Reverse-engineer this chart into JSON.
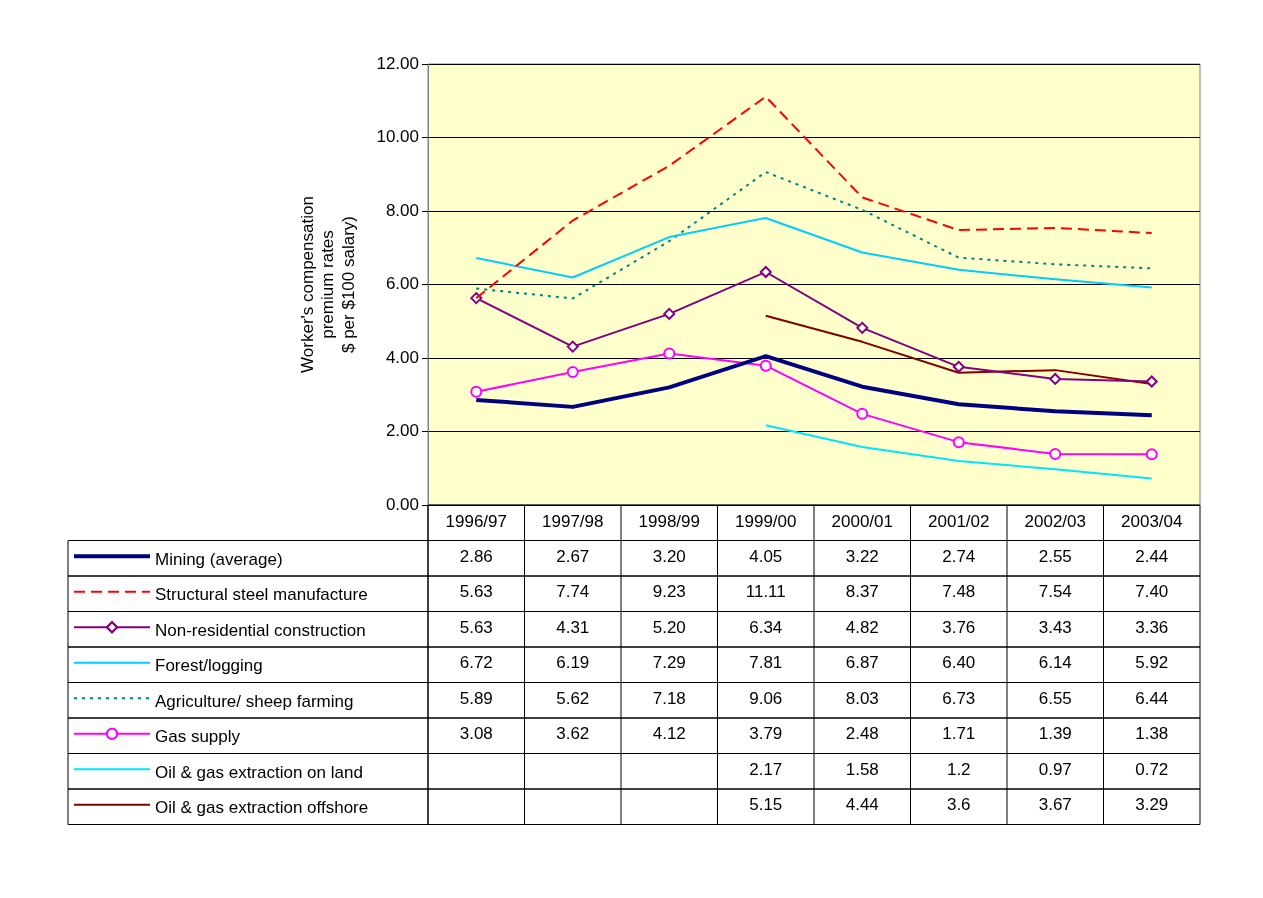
{
  "chart_data": {
    "type": "line",
    "ylabel": "Worker's compensation\npremium rates\n$ per $100 salary)",
    "categories": [
      "1996/97",
      "1997/98",
      "1998/99",
      "1999/00",
      "2000/01",
      "2001/02",
      "2002/03",
      "2003/04"
    ],
    "ylim": [
      0,
      12
    ],
    "yticks": [
      {
        "value": 0,
        "label": "0.00"
      },
      {
        "value": 2,
        "label": "2.00"
      },
      {
        "value": 4,
        "label": "4.00"
      },
      {
        "value": 6,
        "label": "6.00"
      },
      {
        "value": 8,
        "label": "8.00"
      },
      {
        "value": 10,
        "label": "10.00"
      },
      {
        "value": 12,
        "label": "12.00"
      }
    ],
    "grid": "y",
    "legend": "bottom",
    "series": [
      {
        "name": "Mining (average)",
        "color": "#000080",
        "line_style": "solid",
        "marker": "none",
        "values": [
          2.86,
          2.67,
          3.2,
          4.05,
          3.22,
          2.74,
          2.55,
          2.44
        ],
        "value_labels": [
          "2.86",
          "2.67",
          "3.20",
          "4.05",
          "3.22",
          "2.74",
          "2.55",
          "2.44"
        ]
      },
      {
        "name": "Structural steel manufacture",
        "color": "#ff0000",
        "line_style": "dashed",
        "marker": "none",
        "values": [
          5.63,
          7.74,
          9.23,
          11.11,
          8.37,
          7.48,
          7.54,
          7.4
        ],
        "value_labels": [
          "5.63",
          "7.74",
          "9.23",
          "11.11",
          "8.37",
          "7.48",
          "7.54",
          "7.40"
        ]
      },
      {
        "name": "Non-residential construction",
        "color": "#800080",
        "line_style": "solid",
        "marker": "diamond",
        "values": [
          5.63,
          4.31,
          5.2,
          6.34,
          4.82,
          3.76,
          3.43,
          3.36
        ],
        "value_labels": [
          "5.63",
          "4.31",
          "5.20",
          "6.34",
          "4.82",
          "3.76",
          "3.43",
          "3.36"
        ]
      },
      {
        "name": "Forest/logging",
        "color": "#00ccff",
        "line_style": "solid",
        "marker": "none",
        "values": [
          6.72,
          6.19,
          7.29,
          7.81,
          6.87,
          6.4,
          6.14,
          5.92
        ],
        "value_labels": [
          "6.72",
          "6.19",
          "7.29",
          "7.81",
          "6.87",
          "6.40",
          "6.14",
          "5.92"
        ]
      },
      {
        "name": "Agriculture/ sheep farming",
        "color": "#008080",
        "line_style": "dotted",
        "marker": "none",
        "values": [
          5.89,
          5.62,
          7.18,
          9.06,
          8.03,
          6.73,
          6.55,
          6.44
        ],
        "value_labels": [
          "5.89",
          "5.62",
          "7.18",
          "9.06",
          "8.03",
          "6.73",
          "6.55",
          "6.44"
        ]
      },
      {
        "name": "Gas supply",
        "color": "#ff00ff",
        "line_style": "solid",
        "marker": "circle",
        "values": [
          3.08,
          3.62,
          4.12,
          3.79,
          2.48,
          1.71,
          1.39,
          1.38
        ],
        "value_labels": [
          "3.08",
          "3.62",
          "4.12",
          "3.79",
          "2.48",
          "1.71",
          "1.39",
          "1.38"
        ]
      },
      {
        "name": "Oil & gas extraction on land",
        "color": "#00e5ff",
        "line_style": "solid",
        "marker": "none",
        "values": [
          null,
          null,
          null,
          2.17,
          1.58,
          1.2,
          0.97,
          0.72
        ],
        "value_labels": [
          null,
          null,
          null,
          "2.17",
          "1.58",
          "1.2",
          "0.97",
          "0.72"
        ]
      },
      {
        "name": "Oil & gas extraction offshore",
        "color": "#800000",
        "line_style": "solid",
        "marker": "none",
        "values": [
          null,
          null,
          null,
          5.15,
          4.44,
          3.6,
          3.67,
          3.29
        ],
        "value_labels": [
          null,
          null,
          null,
          "5.15",
          "4.44",
          "3.6",
          "3.67",
          "3.29"
        ]
      }
    ]
  }
}
